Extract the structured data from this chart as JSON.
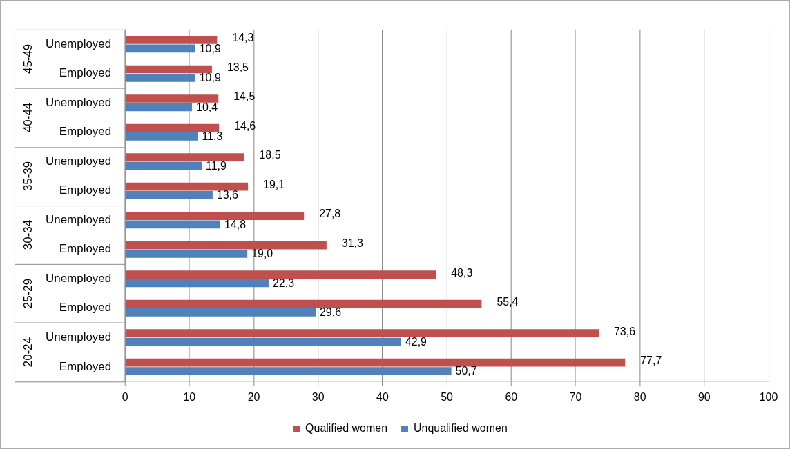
{
  "chart_data": {
    "type": "bar",
    "orientation": "horizontal",
    "categories": [
      "Unemployed",
      "Employed",
      "Unemployed",
      "Employed",
      "Unemployed",
      "Employed",
      "Unemployed",
      "Employed",
      "Unemployed",
      "Employed",
      "Unemployed",
      "Employed"
    ],
    "series": [
      {
        "name": "Qualified women",
        "color": "#c0504d",
        "values": [
          14.3,
          13.5,
          14.5,
          14.6,
          18.5,
          19.1,
          27.8,
          31.3,
          48.3,
          55.4,
          73.6,
          77.7
        ],
        "value_labels": [
          "14,3",
          "13,5",
          "14,5",
          "14,6",
          "18,5",
          "19,1",
          "27,8",
          "31,3",
          "48,3",
          "55,4",
          "73,6",
          "77,7"
        ]
      },
      {
        "name": "Unqualified women",
        "color": "#4f81bd",
        "values": [
          10.9,
          10.9,
          10.4,
          11.3,
          11.9,
          13.6,
          14.8,
          19.0,
          22.3,
          29.6,
          42.9,
          50.7
        ],
        "value_labels": [
          "10,9",
          "10,9",
          "10,4",
          "11,3",
          "11,9",
          "13,6",
          "14,8",
          "19,0",
          "22,3",
          "29,6",
          "42,9",
          "50,7"
        ]
      }
    ],
    "annotations": [
      "45-49",
      "40-44",
      "35-39",
      "30-34",
      "25-29",
      "20-24"
    ],
    "xlim": [
      0,
      100
    ],
    "xticks": [
      0,
      10,
      20,
      30,
      40,
      50,
      60,
      70,
      80,
      90,
      100
    ],
    "grid": "x",
    "legend": "bottom"
  }
}
